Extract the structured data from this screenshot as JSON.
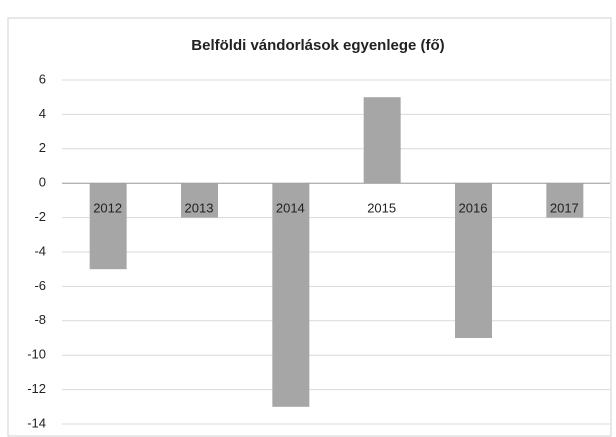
{
  "chart_data": {
    "type": "bar",
    "title": "Belföldi vándorlások egyenlege (fő)",
    "categories": [
      "2012",
      "2013",
      "2014",
      "2015",
      "2016",
      "2017"
    ],
    "values": [
      -5,
      -2,
      -13,
      5,
      -9,
      -2
    ],
    "color": "#a6a6a6",
    "ylim": [
      -14,
      6
    ],
    "yticks": [
      -14,
      -12,
      -10,
      -8,
      -6,
      -4,
      -2,
      0,
      2,
      4,
      6
    ],
    "grid": true
  }
}
